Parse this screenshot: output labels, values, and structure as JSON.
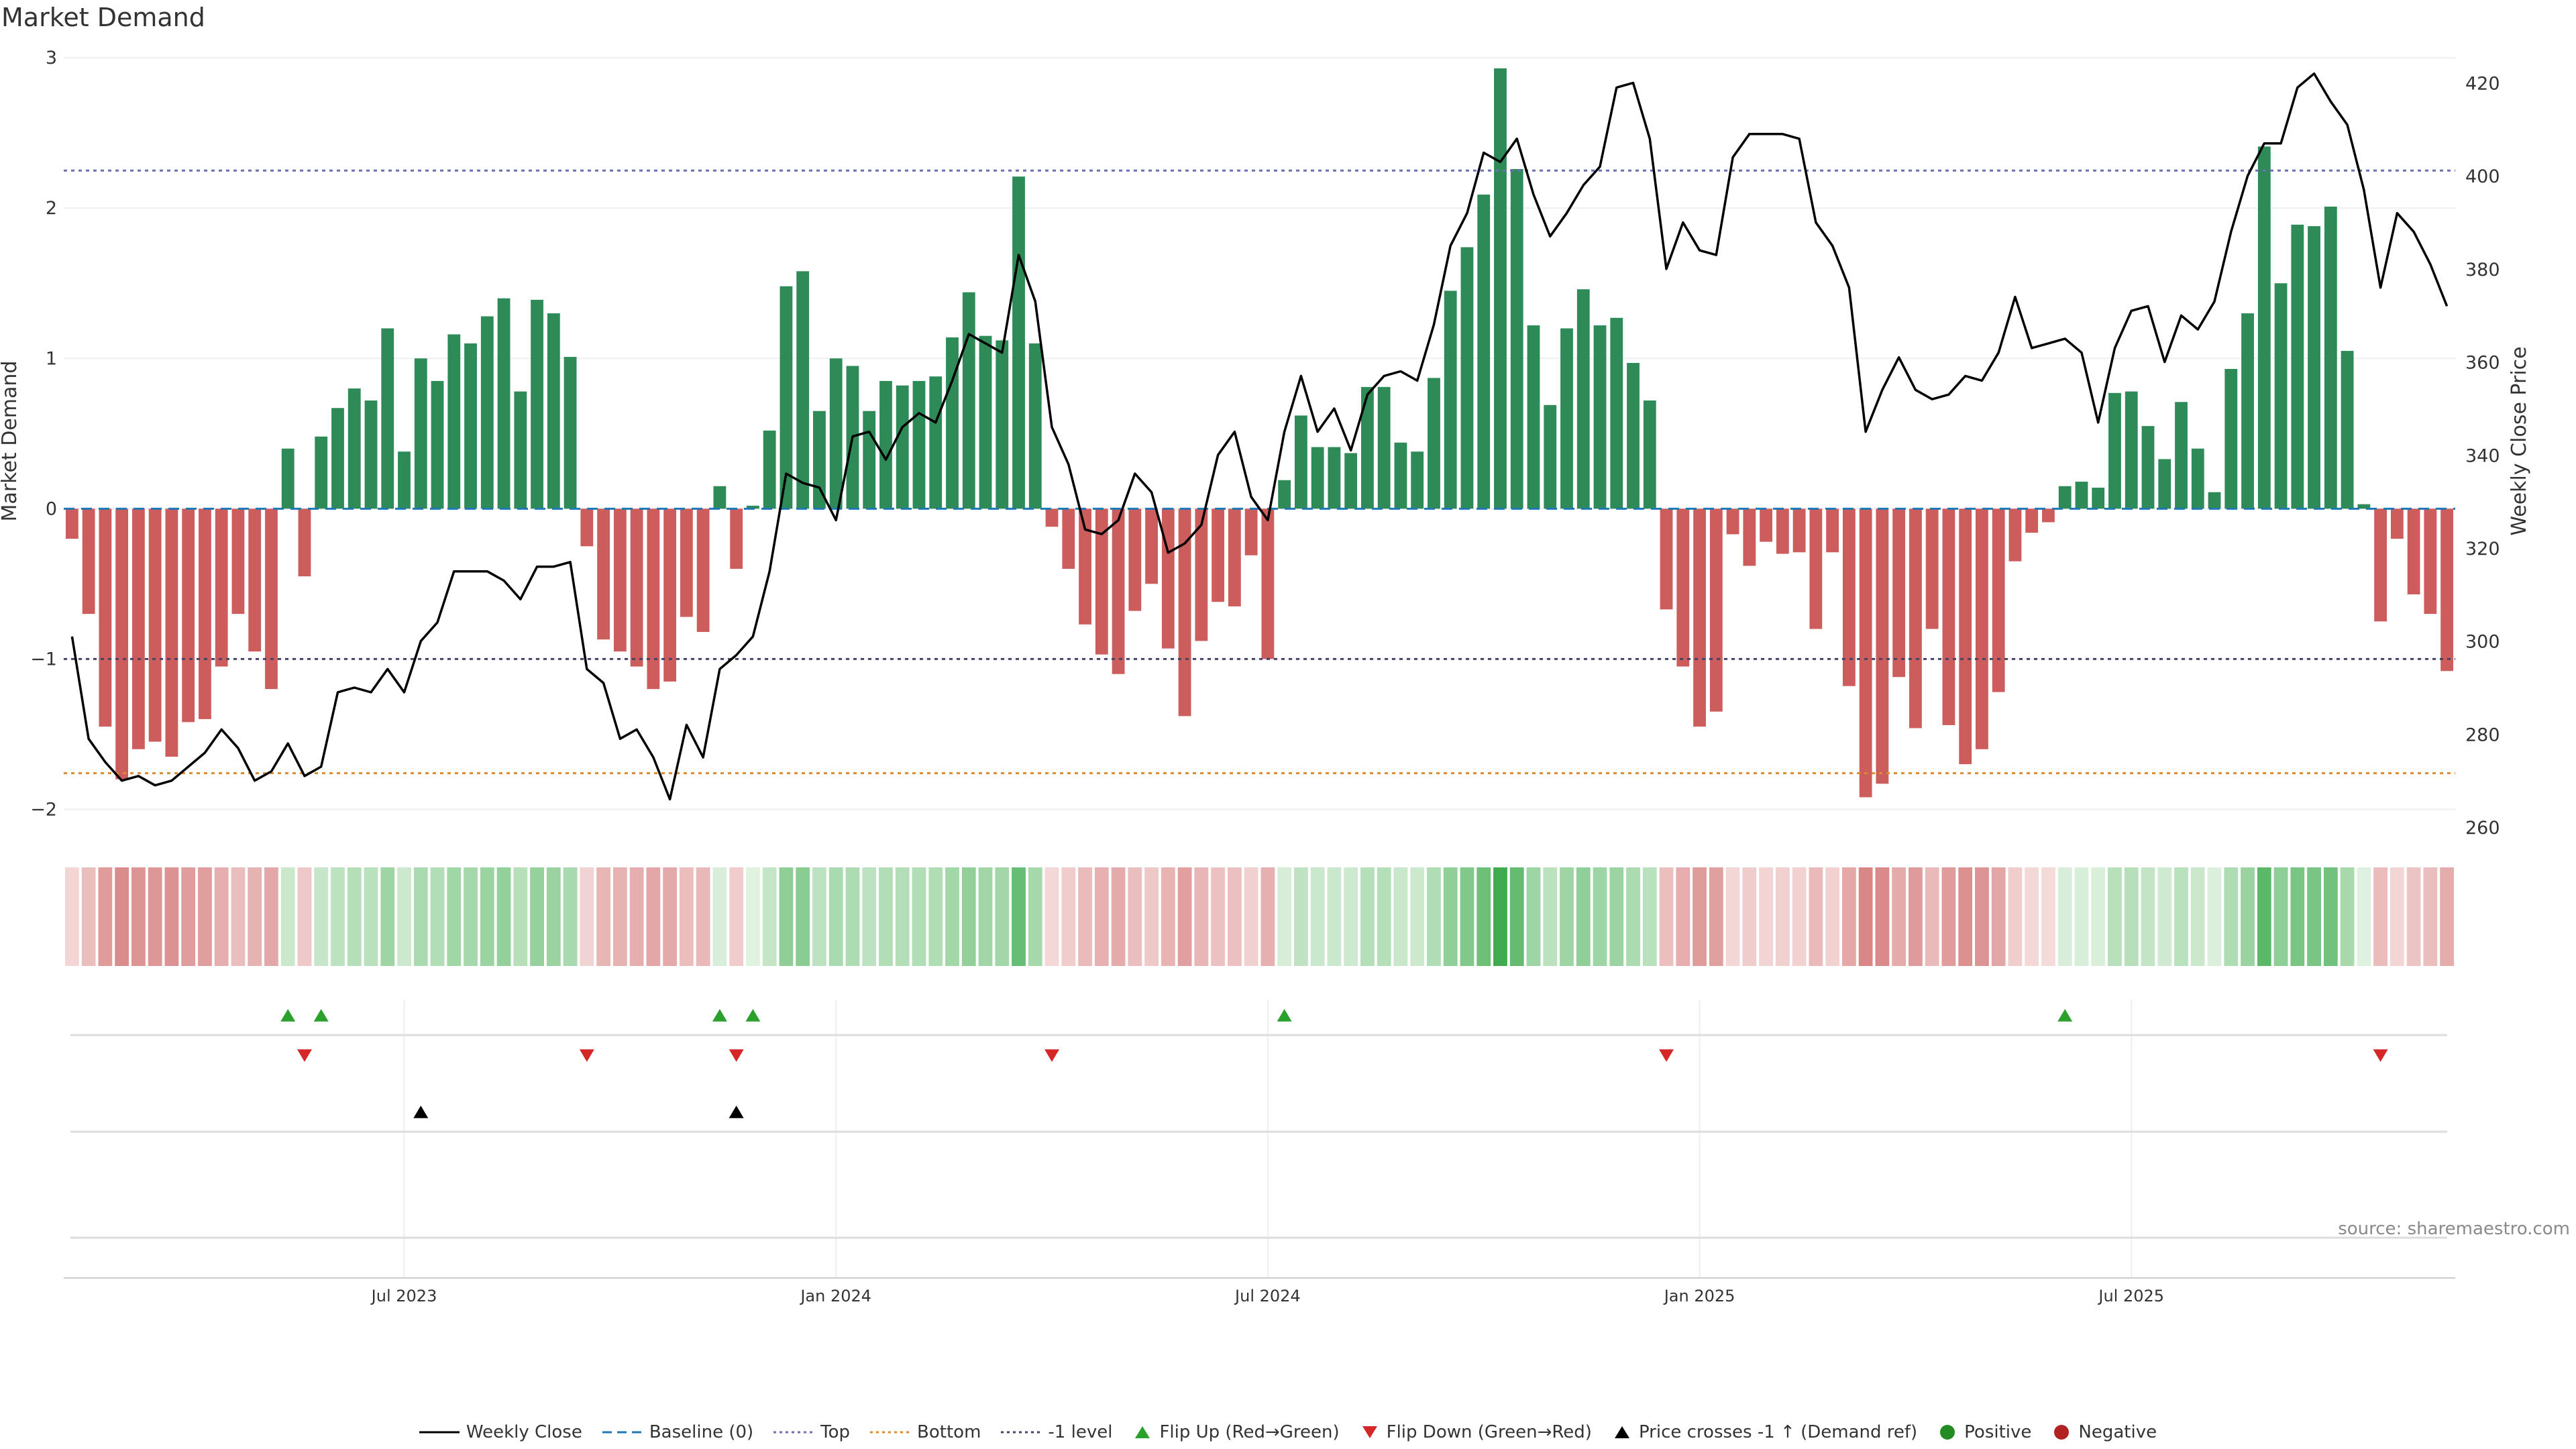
{
  "title": "Market Demand",
  "source": "source: sharemaestro.com",
  "colors": {
    "positive": "#2e8b57",
    "negative": "#cd5c5c",
    "price": "#000000",
    "top": "#6b6fb3",
    "bottom": "#e08a2c",
    "minus1": "#444466",
    "baseline": "#1f77b4",
    "flip_up": "#2ca02c",
    "flip_down": "#d62728",
    "cross": "#000000",
    "positive_dot": "#228b22",
    "negative_dot": "#b22222"
  },
  "legend": [
    {
      "label": "Weekly Close",
      "marker": "solid-line",
      "color": "#000000"
    },
    {
      "label": "Baseline (0)",
      "marker": "dashed-line",
      "color": "#1f77b4"
    },
    {
      "label": "Top",
      "marker": "dotted-line",
      "color": "#6b6fb3"
    },
    {
      "label": "Bottom",
      "marker": "dotted-line",
      "color": "#e08a2c"
    },
    {
      "label": "-1 level",
      "marker": "dotted-line",
      "color": "#444466"
    },
    {
      "label": "Flip Up (Red→Green)",
      "marker": "triangle-up",
      "color": "#2ca02c"
    },
    {
      "label": "Flip Down (Green→Red)",
      "marker": "triangle-down",
      "color": "#d62728"
    },
    {
      "label": "Price crosses -1 ↑ (Demand ref)",
      "marker": "triangle-up",
      "color": "#000000"
    },
    {
      "label": "Positive",
      "marker": "dot",
      "color": "#228b22"
    },
    {
      "label": "Negative",
      "marker": "dot",
      "color": "#b22222"
    }
  ],
  "chart_data": {
    "type": "bar",
    "title": "Market Demand",
    "ylabel": "Market Demand",
    "y2label": "Weekly Close Price",
    "ylim": [
      -2.15,
      3.05
    ],
    "y2lim": [
      259,
      427
    ],
    "yticks": [
      "3",
      "2",
      "1",
      "0",
      "−1",
      "−2"
    ],
    "y2ticks": [
      "420",
      "400",
      "380",
      "360",
      "340",
      "320",
      "300",
      "280",
      "260"
    ],
    "xticks": [
      {
        "week": 20,
        "label": "Jul 2023"
      },
      {
        "week": 46,
        "label": "Jan 2024"
      },
      {
        "week": 72,
        "label": "Jul 2024"
      },
      {
        "week": 98,
        "label": "Jan 2025"
      },
      {
        "week": 124,
        "label": "Jul 2025"
      }
    ],
    "levels": {
      "baseline": 0,
      "top": 2.25,
      "bottom": -1.76,
      "minus1": -1.0
    },
    "demand": [
      -0.2,
      -0.7,
      -1.45,
      -1.8,
      -1.6,
      -1.55,
      -1.65,
      -1.42,
      -1.4,
      -1.05,
      -0.7,
      -0.95,
      -1.2,
      0.4,
      -0.45,
      0.48,
      0.67,
      0.8,
      0.72,
      1.2,
      0.38,
      1.0,
      0.85,
      1.16,
      1.1,
      1.28,
      1.4,
      0.78,
      1.39,
      1.3,
      1.01,
      -0.25,
      -0.87,
      -0.95,
      -1.05,
      -1.2,
      -1.15,
      -0.72,
      -0.82,
      0.15,
      -0.4,
      0.02,
      0.52,
      1.48,
      1.58,
      0.65,
      1.0,
      0.95,
      0.65,
      0.85,
      0.82,
      0.85,
      0.88,
      1.14,
      1.44,
      1.15,
      1.12,
      2.21,
      1.1,
      -0.12,
      -0.4,
      -0.77,
      -0.97,
      -1.1,
      -0.68,
      -0.5,
      -0.93,
      -1.38,
      -0.88,
      -0.62,
      -0.65,
      -0.31,
      -1.0,
      0.19,
      0.62,
      0.41,
      0.41,
      0.37,
      0.81,
      0.81,
      0.44,
      0.38,
      0.87,
      1.45,
      1.74,
      2.09,
      2.93,
      2.26,
      1.22,
      0.69,
      1.2,
      1.46,
      1.22,
      1.27,
      0.97,
      0.72,
      -0.67,
      -1.05,
      -1.45,
      -1.35,
      -0.17,
      -0.38,
      -0.22,
      -0.3,
      -0.29,
      -0.8,
      -0.29,
      -1.18,
      -1.92,
      -1.83,
      -1.12,
      -1.46,
      -0.8,
      -1.44,
      -1.7,
      -1.6,
      -1.22,
      -0.35,
      -0.16,
      -0.09,
      0.15,
      0.18,
      0.14,
      0.77,
      0.78,
      0.55,
      0.33,
      0.71,
      0.4,
      0.11,
      0.93,
      1.3,
      2.41,
      1.5,
      1.89,
      1.88,
      2.01,
      1.05,
      0.03,
      -0.75,
      -0.2,
      -0.57,
      -0.7,
      -1.08
    ],
    "price": [
      301,
      279,
      274,
      270,
      271,
      269,
      270,
      273,
      276,
      281,
      277,
      270,
      272,
      278,
      271,
      273,
      289,
      290,
      289,
      294,
      289,
      300,
      304,
      315,
      315,
      315,
      313,
      309,
      316,
      316,
      317,
      294,
      291,
      279,
      281,
      275,
      266,
      282,
      275,
      294,
      297,
      301,
      315,
      336,
      334,
      333,
      326,
      344,
      345,
      339,
      346,
      349,
      347,
      356,
      366,
      364,
      362,
      383,
      373,
      346,
      338,
      324,
      323,
      326,
      336,
      332,
      319,
      321,
      325,
      340,
      345,
      331,
      326,
      345,
      357,
      345,
      350,
      341,
      353,
      357,
      358,
      356,
      368,
      385,
      392,
      405,
      403,
      408,
      396,
      387,
      392,
      398,
      402,
      419,
      420,
      408,
      380,
      390,
      384,
      383,
      404,
      409,
      409,
      409,
      408,
      390,
      385,
      376,
      345,
      354,
      361,
      354,
      352,
      353,
      357,
      356,
      362,
      374,
      363,
      364,
      365,
      362,
      347,
      363,
      371,
      372,
      360,
      370,
      367,
      373,
      388,
      400,
      407,
      407,
      419,
      422,
      416,
      411,
      397,
      376,
      392,
      388,
      381,
      372
    ],
    "flip_up_weeks": [
      13,
      15,
      39,
      41,
      73,
      120
    ],
    "flip_down_weeks": [
      14,
      31,
      40,
      59,
      96,
      139
    ],
    "price_cross_weeks": [
      21,
      40
    ]
  }
}
